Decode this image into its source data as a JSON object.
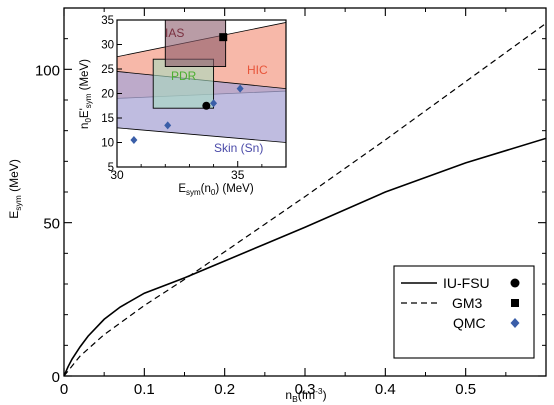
{
  "chart_data": [
    {
      "type": "line",
      "xlabel_base": "n",
      "xlabel_sub": "B",
      "xlabel_rest": "(fm",
      "xlabel_sup": "-3",
      "xlabel_end": ")",
      "ylabel_base": "E",
      "ylabel_sub": "sym",
      "ylabel_rest": " (MeV)",
      "xlim": [
        0,
        0.6
      ],
      "ylim": [
        0,
        120
      ],
      "xticks": [
        0,
        0.1,
        0.2,
        0.3,
        0.4,
        0.5
      ],
      "xtick_labels": [
        "0",
        "0.1",
        "0.2",
        "0.3",
        "0.4",
        "0.5"
      ],
      "yticks": [
        0,
        50,
        100
      ],
      "ytick_labels": [
        "0",
        "50",
        "100"
      ],
      "series": [
        {
          "name": "IU-FSU",
          "style": "solid",
          "x": [
            0,
            0.005,
            0.01,
            0.02,
            0.03,
            0.05,
            0.07,
            0.1,
            0.15,
            0.2,
            0.25,
            0.3,
            0.4,
            0.5,
            0.6
          ],
          "y": [
            0,
            3,
            5.5,
            9.5,
            13,
            18.5,
            22.5,
            27,
            32,
            37.5,
            43,
            48.5,
            60,
            69.5,
            77.5
          ]
        },
        {
          "name": "GM3",
          "style": "dashed",
          "x": [
            0,
            0.02,
            0.05,
            0.1,
            0.15,
            0.2,
            0.25,
            0.3,
            0.4,
            0.5,
            0.6
          ],
          "y": [
            0,
            6.5,
            13.5,
            23,
            31.5,
            40.5,
            49.5,
            58.5,
            77,
            96,
            115
          ]
        }
      ],
      "legend": {
        "position": "bottom-right",
        "entries": [
          {
            "label": "IU-FSU",
            "line": "solid",
            "marker": "circle"
          },
          {
            "label": "GM3",
            "line": "dashed",
            "marker": "square"
          },
          {
            "label": "QMC",
            "line": "none",
            "marker": "diamond"
          }
        ]
      }
    },
    {
      "type": "scatter",
      "xlabel_base": "E",
      "xlabel_sub": "sym",
      "xlabel_mid": "(n",
      "xlabel_sub2": "0",
      "xlabel_end": ") (MeV)",
      "ylabel_a": "n",
      "ylabel_sub0": "0",
      "ylabel_b": "E'",
      "ylabel_sub": "sym",
      "ylabel_end": " (MeV)",
      "xlim": [
        30,
        37
      ],
      "ylim": [
        5,
        35
      ],
      "xticks": [
        30,
        35
      ],
      "xtick_labels": [
        "30",
        "35"
      ],
      "yticks": [
        5,
        10,
        15,
        20,
        25,
        30,
        35
      ],
      "ytick_labels": [
        "5",
        "10",
        "15",
        "20",
        "25",
        "30",
        "35"
      ],
      "regions": [
        {
          "label": "HIC",
          "color": "#f4a08c",
          "label_color": "#e8553a",
          "polygon": [
            [
              30,
              27.5
            ],
            [
              37,
              34.5
            ],
            [
              37,
              20.5
            ],
            [
              30,
              19
            ]
          ]
        },
        {
          "label": "Skin (Sn)",
          "color": "#a9a6d6",
          "label_color": "#4a4aa8",
          "polygon": [
            [
              30,
              24.5
            ],
            [
              37,
              21
            ],
            [
              37,
              10
            ],
            [
              30,
              13
            ]
          ]
        },
        {
          "label": "PDR",
          "color": "#a7dcc0",
          "label_color": "#4cae32",
          "rect": [
            31.5,
            34,
            17,
            27
          ]
        },
        {
          "label": "IAS",
          "color": "#8a5a6a",
          "label_color": "#7a3040",
          "rect": [
            32,
            34.5,
            25.5,
            35
          ]
        }
      ],
      "points": [
        {
          "set": "IU-FSU",
          "marker": "circle",
          "color": "#000000",
          "x": [
            33.7
          ],
          "y": [
            17.5
          ]
        },
        {
          "set": "GM3",
          "marker": "square",
          "color": "#000000",
          "x": [
            34.4
          ],
          "y": [
            31.5
          ]
        },
        {
          "set": "QMC",
          "marker": "diamond",
          "color": "#3a5ea8",
          "x": [
            30.7,
            32.1,
            34.0,
            35.1
          ],
          "y": [
            10.5,
            13.5,
            18.0,
            21.0
          ]
        }
      ]
    }
  ]
}
